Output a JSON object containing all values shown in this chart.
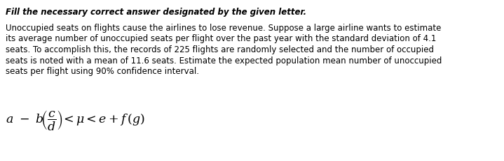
{
  "title": "Fill the necessary correct answer designated by the given letter.",
  "line1": "Unoccupied seats on flights cause the airlines to lose revenue. Suppose a large airline wants to estimate",
  "line2": "its average number of unoccupied seats per flight over the past year with the standard deviation of 4.1",
  "line3": "seats. To accomplish this, the records of 225 flights are randomly selected and the number of occupied",
  "line4": "seats is noted with a mean of 11.6 seats. Estimate the expected population mean number of unoccupied",
  "line5": "seats per flight using 90% confidence interval.",
  "bg_color": "#ffffff",
  "text_color": "#000000",
  "title_fontsize": 8.5,
  "body_fontsize": 8.5,
  "formula_fontsize": 12.5
}
